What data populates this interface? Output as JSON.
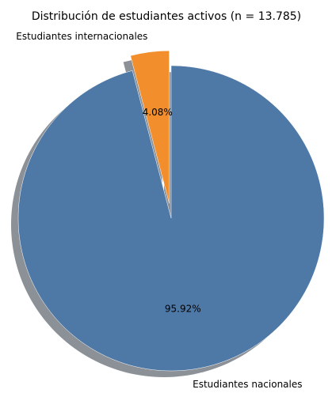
{
  "chart_data": {
    "type": "pie",
    "title": "Distribución de estudiantes activos (n = 13.785)",
    "start_angle_deg": 90,
    "direction": "clockwise",
    "shadow": true,
    "slices": [
      {
        "label": "Estudiantes nacionales",
        "value": 95.92,
        "pct_text": "95.92%",
        "color": "#4e79a7",
        "explode": false
      },
      {
        "label": "Estudiantes internacionales",
        "value": 4.08,
        "pct_text": "4.08%",
        "color": "#f28e2b",
        "explode": true
      }
    ],
    "shadow_color": "#8c9197"
  }
}
